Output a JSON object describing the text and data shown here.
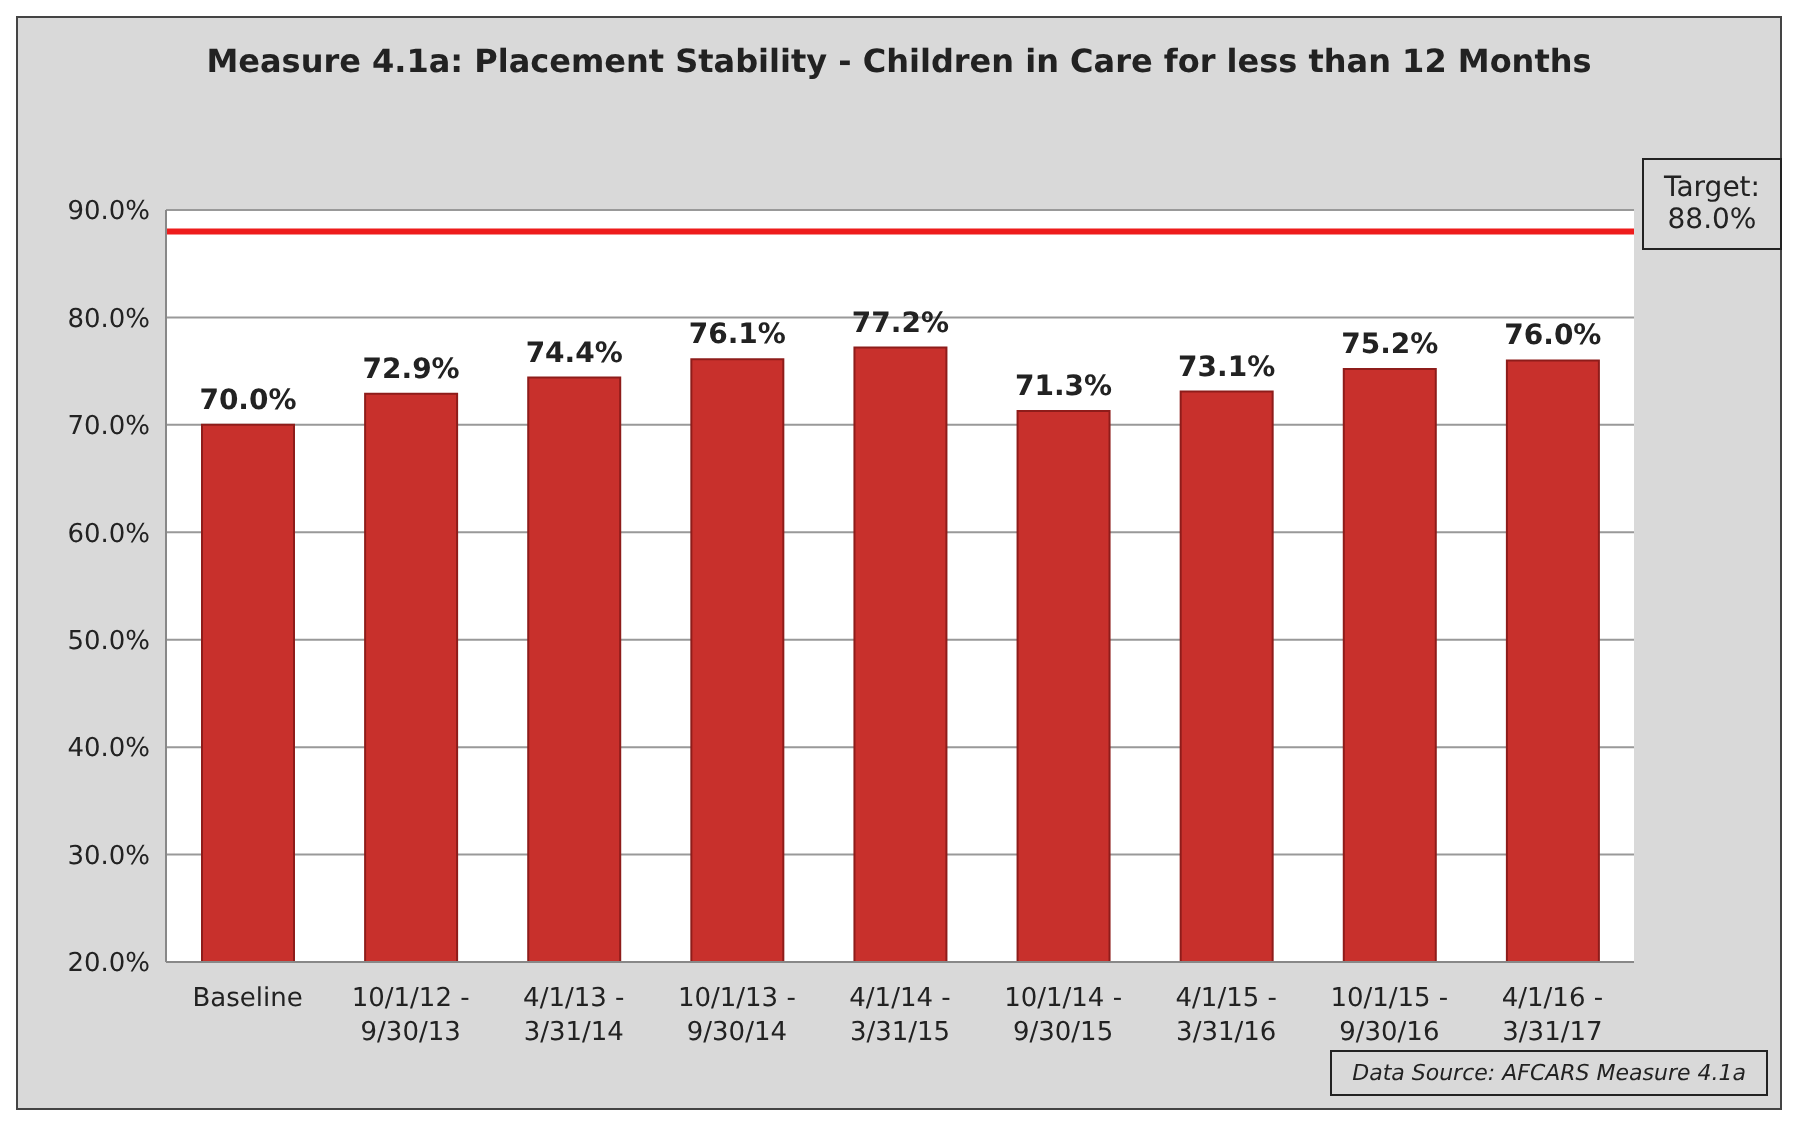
{
  "chart_data": {
    "type": "bar",
    "title": "Measure 4.1a: Placement Stability - Children in Care for less than 12 Months",
    "categories": [
      "Baseline",
      "10/1/12 - 9/30/13",
      "4/1/13 - 3/31/14",
      "10/1/13 - 9/30/14",
      "4/1/14 - 3/31/15",
      "10/1/14 - 9/30/15",
      "4/1/15 - 3/31/16",
      "10/1/15 - 9/30/16",
      "4/1/16 - 3/31/17"
    ],
    "values": [
      70.0,
      72.9,
      74.4,
      76.1,
      77.2,
      71.3,
      73.1,
      75.2,
      76.0
    ],
    "value_labels": [
      "70.0%",
      "72.9%",
      "74.4%",
      "76.1%",
      "77.2%",
      "71.3%",
      "73.1%",
      "75.2%",
      "76.0%"
    ],
    "color": "#c8302c",
    "ylim": [
      20,
      90
    ],
    "yticks": [
      {
        "value": 20,
        "label": "20.0%"
      },
      {
        "value": 30,
        "label": "30.0%"
      },
      {
        "value": 40,
        "label": "40.0%"
      },
      {
        "value": 50,
        "label": "50.0%"
      },
      {
        "value": 60,
        "label": "60.0%"
      },
      {
        "value": 70,
        "label": "70.0%"
      },
      {
        "value": 80,
        "label": "80.0%"
      },
      {
        "value": 90,
        "label": "90.0%"
      }
    ],
    "grid": "y",
    "ref_lines": [
      {
        "axis": "y",
        "value": 88,
        "label": "Target: 88.0%",
        "color": "#ee1c1c"
      }
    ],
    "annotations": [
      "Data Source: AFCARS Measure 4.1a"
    ]
  }
}
